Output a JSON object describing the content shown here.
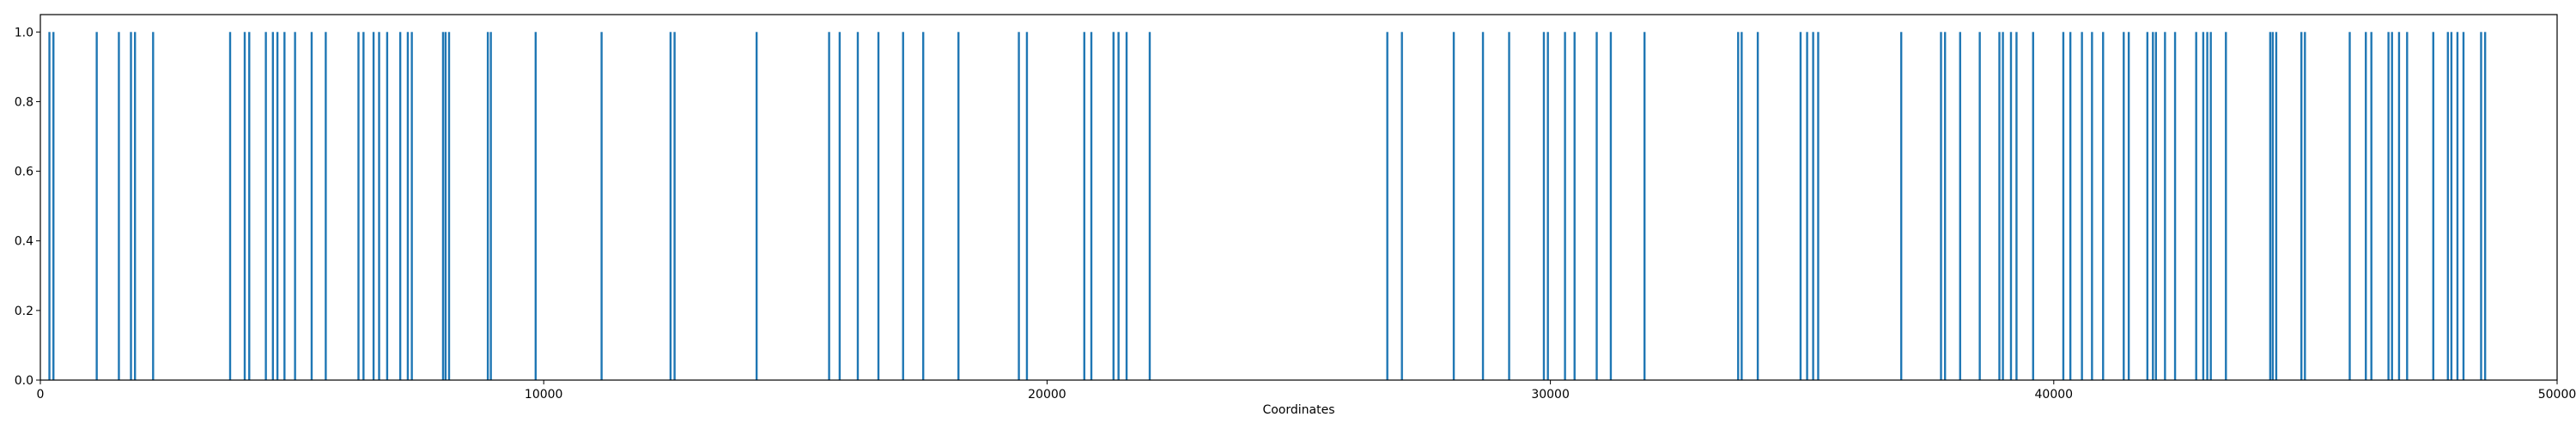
{
  "chart_data": {
    "type": "bar",
    "xlabel": "Coordinates",
    "ylabel": "",
    "xlim": [
      0,
      50000
    ],
    "ylim": [
      0,
      1.05
    ],
    "grid": false,
    "bar_color": "#1f77b4",
    "xticks": [
      0,
      10000,
      20000,
      30000,
      40000,
      50000
    ],
    "xtick_labels": [
      "0",
      "10000",
      "20000",
      "30000",
      "40000",
      "50000"
    ],
    "yticks": [
      0.0,
      0.2,
      0.4,
      0.6,
      0.8,
      1.0
    ],
    "ytick_labels": [
      "0.0",
      "0.2",
      "0.4",
      "0.6",
      "0.8",
      "1.0"
    ],
    "series": [
      {
        "values_constant": 1.0,
        "x": [
          180,
          260,
          1120,
          1560,
          1800,
          1880,
          2240,
          3770,
          4060,
          4150,
          4480,
          4620,
          4710,
          4850,
          5060,
          5390,
          5670,
          6320,
          6420,
          6620,
          6730,
          6890,
          7150,
          7300,
          7380,
          8000,
          8050,
          8120,
          8890,
          8950,
          9840,
          11150,
          12520,
          12600,
          14230,
          15670,
          15880,
          16240,
          16650,
          17140,
          17540,
          18240,
          19440,
          19600,
          20740,
          20880,
          21320,
          21420,
          21580,
          22040,
          26760,
          27050,
          28080,
          28660,
          29180,
          29870,
          29950,
          30290,
          30480,
          30920,
          31200,
          31870,
          33730,
          33800,
          34120,
          34970,
          35100,
          35220,
          35320,
          36970,
          37760,
          37840,
          38140,
          38530,
          38920,
          38990,
          39150,
          39260,
          39590,
          40190,
          40330,
          40560,
          40760,
          40980,
          41390,
          41490,
          41860,
          41970,
          42030,
          42210,
          42410,
          42830,
          42970,
          43050,
          43120,
          43420,
          44300,
          44350,
          44420,
          44920,
          44990,
          45880,
          46200,
          46310,
          46650,
          46720,
          46860,
          47020,
          47540,
          47830,
          47900,
          48020,
          48140,
          48490,
          48570
        ]
      }
    ]
  }
}
